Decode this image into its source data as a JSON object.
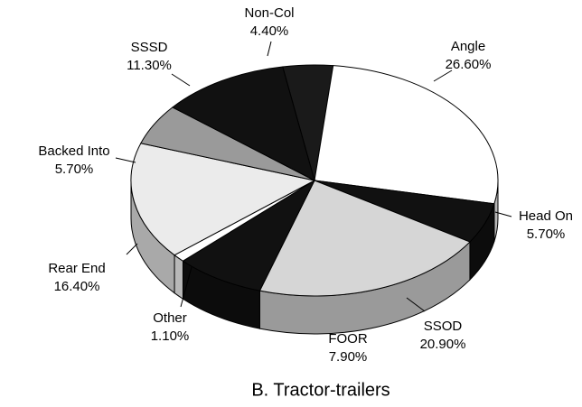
{
  "chart_data": {
    "type": "pie",
    "title": "B.  Tractor-trailers",
    "categories": [
      "Non-Col",
      "Angle",
      "Head On",
      "SSOD",
      "FOOR",
      "Other",
      "Rear End",
      "Backed Into",
      "SSSD"
    ],
    "values": [
      4.4,
      26.6,
      5.7,
      20.9,
      7.9,
      1.1,
      16.4,
      5.7,
      11.3
    ],
    "value_labels": [
      "4.40%",
      "26.60%",
      "5.70%",
      "20.90%",
      "7.90%",
      "1.10%",
      "16.40%",
      "5.70%",
      "11.30%"
    ],
    "colors": [
      "#1a1a1a",
      "#ffffff",
      "#111111",
      "#d6d6d6",
      "#111111",
      "#ffffff",
      "#ebebeb",
      "#9a9a9a",
      "#111111"
    ]
  }
}
